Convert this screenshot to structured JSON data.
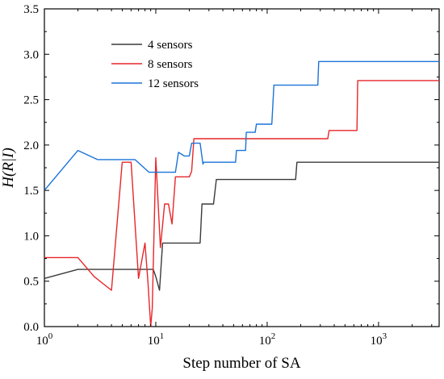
{
  "chart_data": {
    "type": "line",
    "xscale": "log",
    "xlim": [
      1,
      3500
    ],
    "ylim": [
      0,
      3.5
    ],
    "xlabel": "Step number of SA",
    "ylabel": "H(R|I)",
    "xticks": [
      {
        "value": 1,
        "base": "10",
        "exp": "0"
      },
      {
        "value": 10,
        "base": "10",
        "exp": "1"
      },
      {
        "value": 100,
        "base": "10",
        "exp": "2"
      },
      {
        "value": 1000,
        "base": "10",
        "exp": "3"
      }
    ],
    "yticks": [
      {
        "value": 0,
        "label": "0.0"
      },
      {
        "value": 0.5,
        "label": "0.5"
      },
      {
        "value": 1.0,
        "label": "1.0"
      },
      {
        "value": 1.5,
        "label": "1.5"
      },
      {
        "value": 2.0,
        "label": "2.0"
      },
      {
        "value": 2.5,
        "label": "2.5"
      },
      {
        "value": 3.0,
        "label": "3.0"
      },
      {
        "value": 3.5,
        "label": "3.5"
      }
    ],
    "legend_position": "top-left",
    "grid": false,
    "series": [
      {
        "name": "4 sensors",
        "color": "#3a3a3a",
        "points": [
          [
            1,
            0.53
          ],
          [
            2,
            0.63
          ],
          [
            9.5,
            0.63
          ],
          [
            10,
            0.55
          ],
          [
            10.8,
            0.4
          ],
          [
            11.5,
            0.92
          ],
          [
            25,
            0.92
          ],
          [
            26,
            1.35
          ],
          [
            33,
            1.35
          ],
          [
            35,
            1.62
          ],
          [
            180,
            1.62
          ],
          [
            185,
            1.81
          ],
          [
            3500,
            1.81
          ]
        ]
      },
      {
        "name": "8 sensors",
        "color": "#e8262a",
        "points": [
          [
            1,
            0.76
          ],
          [
            2,
            0.76
          ],
          [
            2.8,
            0.55
          ],
          [
            4,
            0.4
          ],
          [
            5,
            1.81
          ],
          [
            6,
            1.81
          ],
          [
            7,
            0.53
          ],
          [
            8,
            0.92
          ],
          [
            8.5,
            0.5
          ],
          [
            9,
            0
          ],
          [
            9.3,
            0.2
          ],
          [
            10,
            1.86
          ],
          [
            11,
            0.87
          ],
          [
            12,
            1.35
          ],
          [
            13,
            1.35
          ],
          [
            14,
            1.13
          ],
          [
            15,
            1.65
          ],
          [
            20,
            1.65
          ],
          [
            21,
            1.71
          ],
          [
            22,
            2.07
          ],
          [
            350,
            2.07
          ],
          [
            360,
            2.16
          ],
          [
            640,
            2.16
          ],
          [
            650,
            2.71
          ],
          [
            3500,
            2.71
          ]
        ]
      },
      {
        "name": "12 sensors",
        "color": "#1a73d9",
        "points": [
          [
            1,
            1.5
          ],
          [
            2,
            1.94
          ],
          [
            3,
            1.84
          ],
          [
            6.5,
            1.84
          ],
          [
            8.7,
            1.7
          ],
          [
            15,
            1.7
          ],
          [
            16,
            1.92
          ],
          [
            18,
            1.88
          ],
          [
            20,
            1.88
          ],
          [
            21,
            2.02
          ],
          [
            25,
            2.02
          ],
          [
            26.5,
            1.79
          ],
          [
            27,
            1.81
          ],
          [
            52,
            1.81
          ],
          [
            53,
            1.94
          ],
          [
            64,
            1.94
          ],
          [
            65,
            2.14
          ],
          [
            78,
            2.14
          ],
          [
            80,
            2.23
          ],
          [
            110,
            2.23
          ],
          [
            115,
            2.66
          ],
          [
            285,
            2.66
          ],
          [
            290,
            2.92
          ],
          [
            3500,
            2.92
          ]
        ]
      }
    ]
  }
}
